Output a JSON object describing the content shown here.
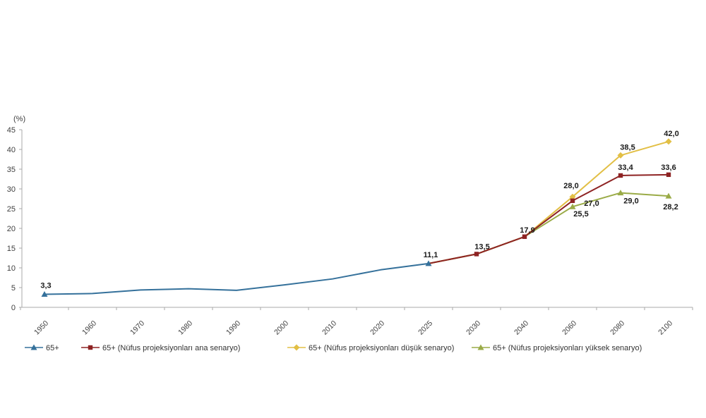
{
  "chart_data": {
    "type": "line",
    "title": "",
    "xlabel": "",
    "ylabel": "(%)",
    "ylim": [
      0,
      45
    ],
    "ytick_step": 5,
    "grid": false,
    "legend_position": "bottom",
    "axis_color": "#a8a8a8",
    "tick_label_color": "#404040",
    "data_label_color": "#1a1a1a",
    "legend_text_color": "#333333",
    "categories": [
      "1950",
      "1960",
      "1970",
      "1980",
      "1990",
      "2000",
      "2010",
      "2020",
      "2025",
      "2030",
      "2040",
      "2060",
      "2080",
      "2100"
    ],
    "series": [
      {
        "name": "65+",
        "slug": "65plus",
        "color": "#35719b",
        "marker": "triangle",
        "values": [
          3.3,
          3.5,
          4.4,
          4.7,
          4.3,
          5.7,
          7.2,
          9.5,
          11.1,
          null,
          null,
          null,
          null,
          null
        ],
        "marker_at": [
          0,
          8
        ],
        "labels": [
          {
            "i": 0,
            "t": "3,3",
            "dx": 2,
            "dy": -9
          },
          {
            "i": 8,
            "t": "11,1",
            "dx": 3,
            "dy": -9
          }
        ]
      },
      {
        "name": "65+ (Nüfus projeksiyonları ana senaryo)",
        "slug": "ana-senaryo",
        "color": "#8e2323",
        "marker": "square",
        "values": [
          null,
          null,
          null,
          null,
          null,
          null,
          null,
          null,
          11.1,
          13.5,
          17.9,
          27.0,
          33.4,
          33.6
        ],
        "marker_at": [
          9,
          10,
          11,
          12,
          13
        ],
        "labels": [
          {
            "i": 9,
            "t": "13,5",
            "dx": 8,
            "dy": -7
          },
          {
            "i": 10,
            "t": "17,9",
            "dx": 4,
            "dy": -6
          },
          {
            "i": 11,
            "t": "27,0",
            "dx": 27,
            "dy": 7
          },
          {
            "i": 12,
            "t": "33,4",
            "dx": 7,
            "dy": -8
          },
          {
            "i": 13,
            "t": "33,6",
            "dx": 0,
            "dy": -7
          }
        ]
      },
      {
        "name": "65+ (Nüfus projeksiyonları düşük senaryo)",
        "slug": "dusuk-senaryo",
        "color": "#e2bf45",
        "marker": "diamond",
        "values": [
          null,
          null,
          null,
          null,
          null,
          null,
          null,
          null,
          11.1,
          13.5,
          17.9,
          28.0,
          38.5,
          42.0
        ],
        "marker_at": [
          11,
          12,
          13
        ],
        "labels": [
          {
            "i": 11,
            "t": "28,0",
            "dx": -2,
            "dy": -12
          },
          {
            "i": 12,
            "t": "38,5",
            "dx": 10,
            "dy": -8
          },
          {
            "i": 13,
            "t": "42,0",
            "dx": 4,
            "dy": -8
          }
        ]
      },
      {
        "name": "65+ (Nüfus projeksiyonları yüksek senaryo)",
        "slug": "yuksek-senaryo",
        "color": "#9aab47",
        "marker": "triangle",
        "values": [
          null,
          null,
          null,
          null,
          null,
          null,
          null,
          null,
          11.1,
          13.5,
          17.9,
          25.5,
          29.0,
          28.2
        ],
        "marker_at": [
          11,
          12,
          13
        ],
        "labels": [
          {
            "i": 11,
            "t": "25,5",
            "dx": 12,
            "dy": 14
          },
          {
            "i": 12,
            "t": "29,0",
            "dx": 15,
            "dy": 15
          },
          {
            "i": 13,
            "t": "28,2",
            "dx": 3,
            "dy": 19
          }
        ]
      }
    ],
    "draw_order": [
      2,
      3,
      1,
      0
    ]
  }
}
